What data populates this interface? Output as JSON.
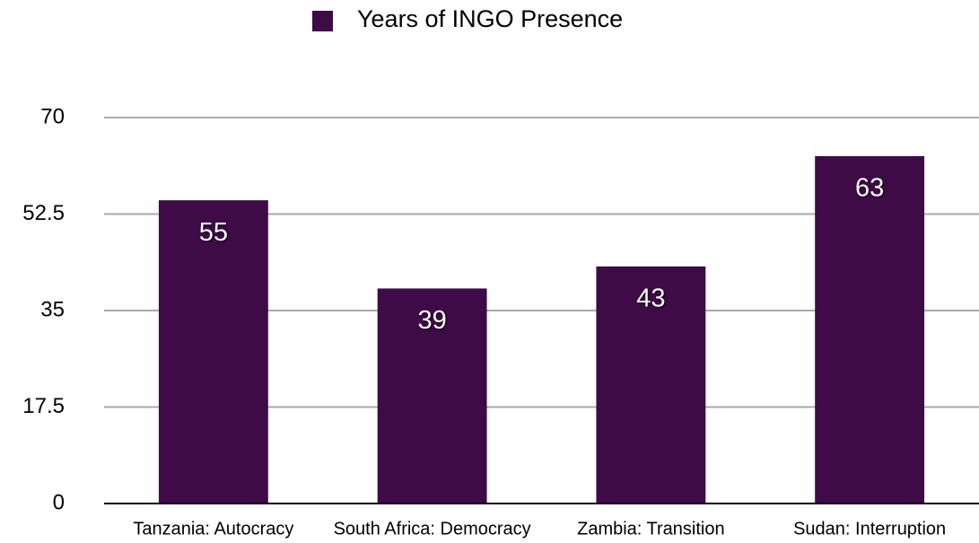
{
  "chart_data": {
    "type": "bar",
    "categories": [
      "Tanzania: Autocracy",
      "South Africa: Democracy",
      "Zambia: Transition",
      "Sudan: Interruption"
    ],
    "series": [
      {
        "name": "Years of INGO Presence",
        "color": "#3e0b47",
        "values": [
          55,
          39,
          43,
          63
        ]
      }
    ],
    "ylim": [
      0,
      70
    ],
    "yticks": [
      0,
      17.5,
      35,
      52.5,
      70
    ],
    "grid": true,
    "legend": "top"
  }
}
